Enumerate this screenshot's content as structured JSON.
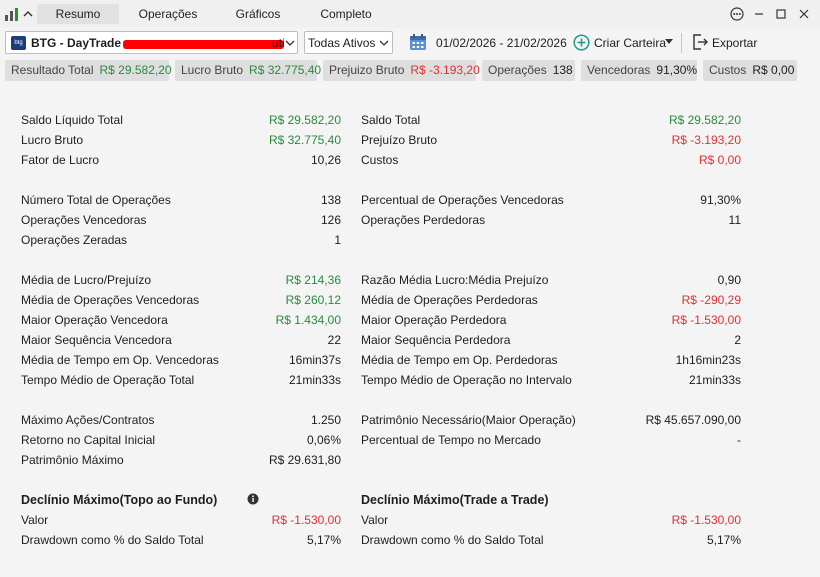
{
  "tabs": [
    {
      "label": "Resumo"
    },
    {
      "label": "Operações"
    },
    {
      "label": "Gráficos"
    },
    {
      "label": "Completo"
    }
  ],
  "toolbar": {
    "broker_name": "BTG - DayTrade",
    "broker_tail": "uti",
    "broker_logo_text": "btg",
    "assets_filter": "Todas Ativos",
    "date_range": "01/02/2026 - 21/02/2026",
    "create_portfolio": "Criar Carteira",
    "export": "Exportar"
  },
  "summary": [
    {
      "label": "Resultado Total",
      "value": "R$ 29.582,20",
      "tone": "green"
    },
    {
      "label": "Lucro Bruto",
      "value": "R$ 32.775,40",
      "tone": "green"
    },
    {
      "label": "Prejuizo Bruto",
      "value": "R$ -3.193,20",
      "tone": "red"
    },
    {
      "label": "Operações",
      "value": "138",
      "tone": "neutral"
    },
    {
      "label": "Vencedoras",
      "value": "91,30%",
      "tone": "neutral"
    },
    {
      "label": "Custos",
      "value": "R$ 0,00",
      "tone": "neutral"
    }
  ],
  "left": {
    "saldo_liquido": {
      "label": "Saldo Líquido Total",
      "value": "R$ 29.582,20"
    },
    "lucro_bruto": {
      "label": "Lucro Bruto",
      "value": "R$ 32.775,40"
    },
    "fator_lucro": {
      "label": "Fator de Lucro",
      "value": "10,26"
    },
    "num_operacoes": {
      "label": "Número Total de Operações",
      "value": "138"
    },
    "op_vencedoras": {
      "label": "Operações Vencedoras",
      "value": "126"
    },
    "op_zeradas": {
      "label": "Operações Zeradas",
      "value": "1"
    },
    "media_lucro": {
      "label": "Média de Lucro/Prejuízo",
      "value": "R$ 214,36"
    },
    "media_venc": {
      "label": "Média de Operações Vencedoras",
      "value": "R$ 260,12"
    },
    "maior_venc": {
      "label": "Maior Operação Vencedora",
      "value": "R$ 1.434,00"
    },
    "seq_venc": {
      "label": "Maior Sequência Vencedora",
      "value": "22"
    },
    "tempo_venc": {
      "label": "Média de Tempo em Op. Vencedoras",
      "value": "16min37s"
    },
    "tempo_total": {
      "label": "Tempo Médio de Operação Total",
      "value": "21min33s"
    },
    "max_acoes": {
      "label": "Máximo Ações/Contratos",
      "value": "1.250"
    },
    "retorno": {
      "label": "Retorno no Capital Inicial",
      "value": "0,06%"
    },
    "patrimonio_max": {
      "label": "Patrimônio Máximo",
      "value": "R$ 29.631,80"
    },
    "declinio_title": "Declínio Máximo(Topo ao Fundo)",
    "valor": {
      "label": "Valor",
      "value": "R$ -1.530,00"
    },
    "drawdown": {
      "label": "Drawdown como % do Saldo Total",
      "value": "5,17%"
    }
  },
  "right": {
    "saldo_total": {
      "label": "Saldo Total",
      "value": "R$ 29.582,20"
    },
    "prejuizo_bruto": {
      "label": "Prejuízo Bruto",
      "value": "R$ -3.193,20"
    },
    "custos": {
      "label": "Custos",
      "value": "R$ 0,00"
    },
    "pct_venc": {
      "label": "Percentual de Operações Vencedoras",
      "value": "91,30%"
    },
    "op_perdedoras": {
      "label": "Operações Perdedoras",
      "value": "11"
    },
    "razao_media": {
      "label": "Razão Média Lucro:Média Prejuízo",
      "value": "0,90"
    },
    "media_perd": {
      "label": "Média de Operações Perdedoras",
      "value": "R$ -290,29"
    },
    "maior_perd": {
      "label": "Maior Operação Perdedora",
      "value": "R$ -1.530,00"
    },
    "seq_perd": {
      "label": "Maior Sequência Perdedora",
      "value": "2"
    },
    "tempo_perd": {
      "label": "Média de Tempo em Op. Perdedoras",
      "value": "1h16min23s"
    },
    "tempo_intervalo": {
      "label": "Tempo Médio de Operação no Intervalo",
      "value": "21min33s"
    },
    "patrimonio_nec": {
      "label": "Patrimônio Necessário(Maior Operação)",
      "value": "R$ 45.657.090,00"
    },
    "pct_tempo": {
      "label": "Percentual de Tempo no Mercado",
      "value": "-"
    },
    "declinio_title": "Declínio Máximo(Trade a Trade)",
    "valor": {
      "label": "Valor",
      "value": "R$ -1.530,00"
    },
    "drawdown": {
      "label": "Drawdown como % do Saldo Total",
      "value": "5,17%"
    }
  }
}
